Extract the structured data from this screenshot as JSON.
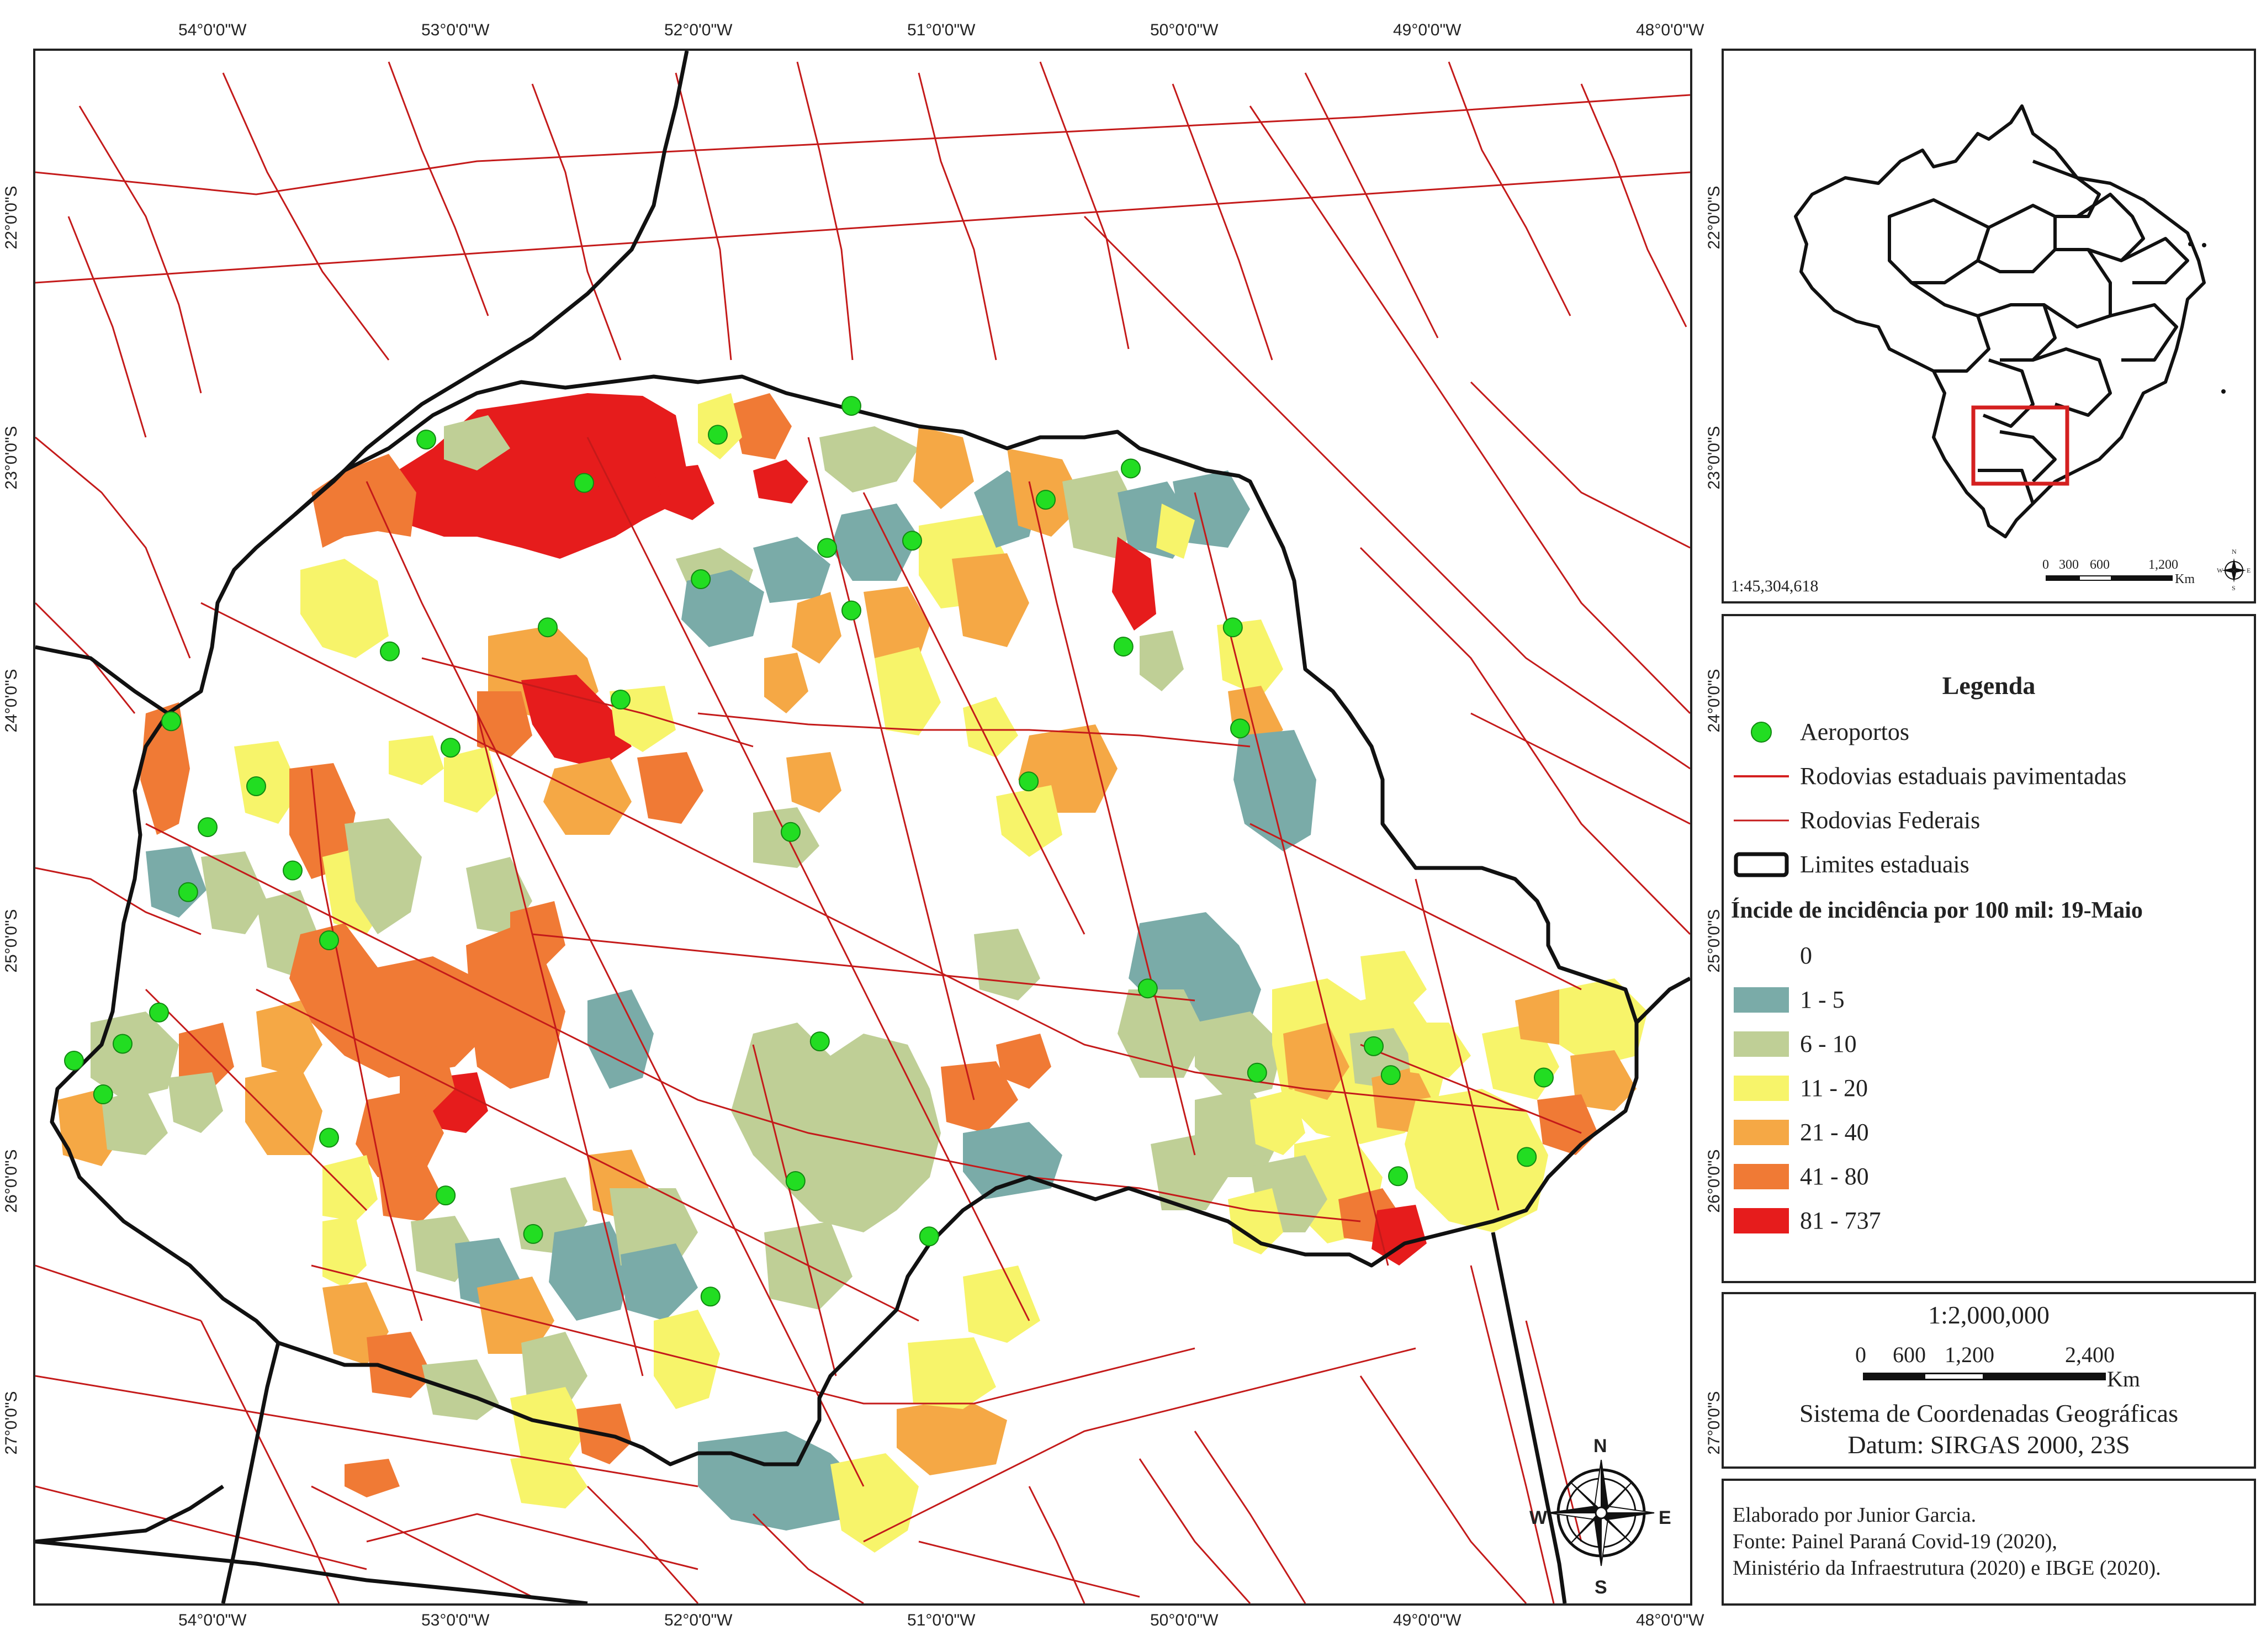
{
  "axes": {
    "lon_labels": [
      "54°0'0\"W",
      "53°0'0\"W",
      "52°0'0\"W",
      "51°0'0\"W",
      "50°0'0\"W",
      "49°0'0\"W",
      "48°0'0\"W"
    ],
    "lat_labels": [
      "22°0'0\"S",
      "23°0'0\"S",
      "24°0'0\"S",
      "25°0'0\"S",
      "26°0'0\"S",
      "27°0'0\"S"
    ]
  },
  "inset": {
    "scale_text": "1:45,304,618",
    "scale_bar_labels": [
      "0",
      "300",
      "600",
      "1,200"
    ],
    "scale_unit": "Km",
    "compass_letters": [
      "N",
      "E",
      "S",
      "W"
    ]
  },
  "legend": {
    "title": "Legenda",
    "items": [
      {
        "label": "Aeroportos",
        "symbol": "point",
        "color": "#22dd22"
      },
      {
        "label": "Rodovias estaduais pavimentadas",
        "symbol": "line",
        "color": "#d42020"
      },
      {
        "label": "Rodovias Federais",
        "symbol": "line",
        "color": "#c41a1a"
      },
      {
        "label": "Limites estaduais",
        "symbol": "polygon",
        "color": "#111111"
      }
    ],
    "class_title": "Íncide de incidência por 100 mil: 19-Maio",
    "classes": [
      {
        "label": "0",
        "color": "#ffffff"
      },
      {
        "label": "1 - 5",
        "color": "#7aaba8"
      },
      {
        "label": "6 - 10",
        "color": "#bfcf96"
      },
      {
        "label": "11 - 20",
        "color": "#f7f46a"
      },
      {
        "label": "21 - 40",
        "color": "#f5a845"
      },
      {
        "label": "41 - 80",
        "color": "#f07a35"
      },
      {
        "label": "81 - 737",
        "color": "#e61c1c"
      }
    ]
  },
  "scale_box": {
    "ratio": "1:2,000,000",
    "bar_labels": [
      "0",
      "600",
      "1,200",
      "2,400"
    ],
    "unit": "Km",
    "crs": "Sistema de Coordenadas Geográficas",
    "datum": "Datum: SIRGAS 2000, 23S"
  },
  "compass": {
    "n": "N",
    "e": "E",
    "s": "S",
    "w": "W"
  },
  "credits": {
    "line1": "Elaborado por Junior Garcia.",
    "line2": "Fonte: Painel Paraná Covid-19 (2020),",
    "line3": "Ministério da Infraestrutura (2020) e IBGE (2020)."
  },
  "airports": [
    {
      "lon": -53.15,
      "lat": -22.92
    },
    {
      "lon": -52.5,
      "lat": -23.1
    },
    {
      "lon": -51.95,
      "lat": -22.9
    },
    {
      "lon": -51.4,
      "lat": -22.78
    },
    {
      "lon": -50.6,
      "lat": -23.17
    },
    {
      "lon": -50.25,
      "lat": -23.04
    },
    {
      "lon": -51.5,
      "lat": -23.37
    },
    {
      "lon": -51.15,
      "lat": -23.34
    },
    {
      "lon": -52.02,
      "lat": -23.5
    },
    {
      "lon": -51.4,
      "lat": -23.63
    },
    {
      "lon": -52.65,
      "lat": -23.7
    },
    {
      "lon": -53.3,
      "lat": -23.8
    },
    {
      "lon": -50.28,
      "lat": -23.78
    },
    {
      "lon": -49.83,
      "lat": -23.7
    },
    {
      "lon": -52.35,
      "lat": -24.0
    },
    {
      "lon": -49.8,
      "lat": -24.12
    },
    {
      "lon": -54.2,
      "lat": -24.09
    },
    {
      "lon": -53.05,
      "lat": -24.2
    },
    {
      "lon": -53.85,
      "lat": -24.36
    },
    {
      "lon": -50.67,
      "lat": -24.34
    },
    {
      "lon": -54.05,
      "lat": -24.53
    },
    {
      "lon": -51.65,
      "lat": -24.55
    },
    {
      "lon": -53.7,
      "lat": -24.71
    },
    {
      "lon": -54.13,
      "lat": -24.8
    },
    {
      "lon": -53.55,
      "lat": -25.0
    },
    {
      "lon": -50.18,
      "lat": -25.2
    },
    {
      "lon": -54.25,
      "lat": -25.3
    },
    {
      "lon": -54.4,
      "lat": -25.43
    },
    {
      "lon": -51.53,
      "lat": -25.42
    },
    {
      "lon": -54.6,
      "lat": -25.5
    },
    {
      "lon": -54.48,
      "lat": -25.64
    },
    {
      "lon": -49.25,
      "lat": -25.44
    },
    {
      "lon": -49.73,
      "lat": -25.55
    },
    {
      "lon": -49.18,
      "lat": -25.56
    },
    {
      "lon": -48.55,
      "lat": -25.57
    },
    {
      "lon": -53.55,
      "lat": -25.82
    },
    {
      "lon": -48.62,
      "lat": -25.9
    },
    {
      "lon": -51.63,
      "lat": -26.0
    },
    {
      "lon": -53.07,
      "lat": -26.06
    },
    {
      "lon": -49.15,
      "lat": -25.98
    },
    {
      "lon": -52.71,
      "lat": -26.22
    },
    {
      "lon": -51.08,
      "lat": -26.23
    },
    {
      "lon": -51.98,
      "lat": -26.48
    }
  ]
}
